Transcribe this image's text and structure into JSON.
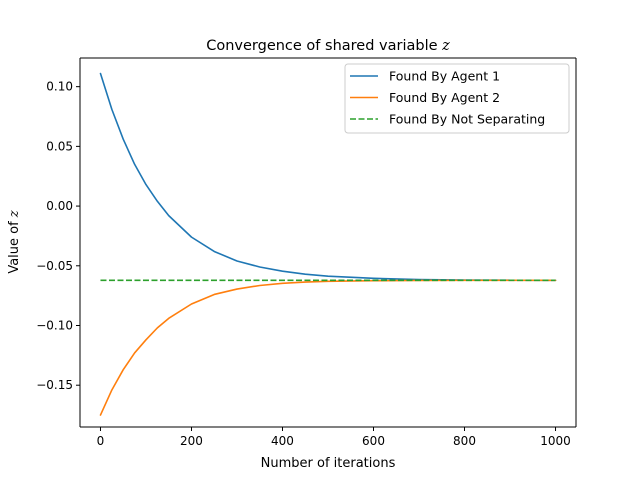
{
  "chart_data": {
    "type": "line",
    "title": "Convergence of shared variable z",
    "title_parts": {
      "text": "Convergence of shared variable ",
      "var": "z"
    },
    "xlabel": "Number of iterations",
    "ylabel_parts": {
      "text": "Value of ",
      "var": "z"
    },
    "xlim": [
      -45,
      1045
    ],
    "ylim": [
      -0.185,
      0.124
    ],
    "xticks": [
      0,
      200,
      400,
      600,
      800,
      1000
    ],
    "yticks": [
      0.1,
      0.05,
      0.0,
      -0.05,
      -0.1,
      -0.15
    ],
    "ytick_labels": [
      "0.10",
      "0.05",
      "0.00",
      "−0.05",
      "−0.10",
      "−0.15"
    ],
    "xtick_labels": [
      "0",
      "200",
      "400",
      "600",
      "800",
      "1000"
    ],
    "grid": false,
    "legend_position": "top-right",
    "series": [
      {
        "name": "Found By Agent 1",
        "color": "#1f77b4",
        "style": "solid",
        "x": [
          0,
          25,
          50,
          75,
          100,
          125,
          150,
          200,
          250,
          300,
          350,
          400,
          450,
          500,
          600,
          700,
          800,
          900,
          1000
        ],
        "y": [
          0.111,
          0.081,
          0.056,
          0.035,
          0.018,
          0.004,
          -0.008,
          -0.026,
          -0.038,
          -0.046,
          -0.051,
          -0.0545,
          -0.057,
          -0.0587,
          -0.0605,
          -0.0615,
          -0.0619,
          -0.0621,
          -0.0622
        ]
      },
      {
        "name": "Found By Agent 2",
        "color": "#ff7f0e",
        "style": "solid",
        "x": [
          0,
          25,
          50,
          75,
          100,
          125,
          150,
          200,
          250,
          300,
          350,
          400,
          450,
          500,
          600,
          700,
          800,
          900,
          1000
        ],
        "y": [
          -0.175,
          -0.154,
          -0.137,
          -0.123,
          -0.112,
          -0.102,
          -0.094,
          -0.082,
          -0.074,
          -0.0695,
          -0.0665,
          -0.0647,
          -0.0636,
          -0.063,
          -0.0625,
          -0.0623,
          -0.0622,
          -0.0622,
          -0.0622
        ]
      },
      {
        "name": "Found By Not Separating",
        "color": "#2ca02c",
        "style": "dashed",
        "x": [
          0,
          1000
        ],
        "y": [
          -0.0622,
          -0.0622
        ]
      }
    ]
  }
}
